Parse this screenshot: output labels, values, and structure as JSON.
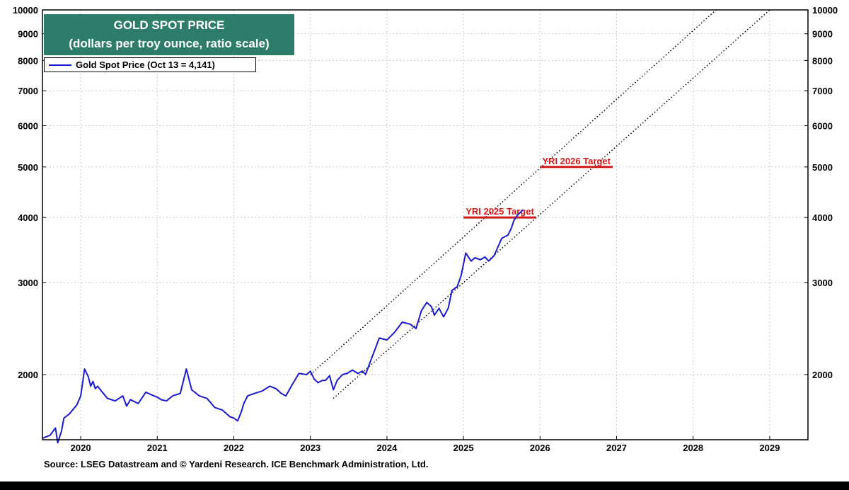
{
  "title": {
    "line1": "GOLD SPOT PRICE",
    "line2": "(dollars per troy ounce, ratio scale)"
  },
  "legend": {
    "label": "Gold Spot Price (Oct 13 = 4,141)"
  },
  "source": "Source: LSEG Datastream and © Yardeni Research. ICE Benchmark Administration, Ltd.",
  "colors": {
    "title_bg": "#2e7d6b",
    "series": "#1a1acc",
    "target": "#d11a1a",
    "grid": "#c8c8c8"
  },
  "chart_data": {
    "type": "line",
    "yscale": "log",
    "ylim": [
      1500,
      10000
    ],
    "xlim": [
      2019.5,
      2029.5
    ],
    "yticks": [
      2000,
      3000,
      4000,
      5000,
      6000,
      7000,
      8000,
      9000,
      10000
    ],
    "ytick_labels": [
      "2000",
      "3000",
      "4000",
      "5000",
      "6000",
      "7000",
      "8000",
      "9000",
      "10000"
    ],
    "xticks": [
      2020,
      2021,
      2022,
      2023,
      2024,
      2025,
      2026,
      2027,
      2028,
      2029
    ],
    "xtick_labels": [
      "2020",
      "2021",
      "2022",
      "2023",
      "2024",
      "2025",
      "2026",
      "2027",
      "2028",
      "2029"
    ],
    "grid": true,
    "legend_position": "top-left",
    "series": [
      {
        "name": "Gold Spot Price (Oct 13 = 4,141)",
        "x": [
          2019.5,
          2019.6,
          2019.67,
          2019.7,
          2019.75,
          2019.78,
          2019.85,
          2019.95,
          2020.0,
          2020.05,
          2020.1,
          2020.13,
          2020.16,
          2020.19,
          2020.22,
          2020.27,
          2020.35,
          2020.45,
          2020.55,
          2020.6,
          2020.65,
          2020.75,
          2020.85,
          2020.92,
          2021.0,
          2021.05,
          2021.12,
          2021.2,
          2021.3,
          2021.38,
          2021.45,
          2021.55,
          2021.65,
          2021.75,
          2021.85,
          2021.95,
          2022.0,
          2022.05,
          2022.1,
          2022.13,
          2022.18,
          2022.27,
          2022.37,
          2022.47,
          2022.55,
          2022.62,
          2022.68,
          2022.75,
          2022.85,
          2022.95,
          2023.0,
          2023.05,
          2023.1,
          2023.16,
          2023.2,
          2023.25,
          2023.3,
          2023.35,
          2023.42,
          2023.48,
          2023.55,
          2023.62,
          2023.68,
          2023.72,
          2023.8,
          2023.9,
          2024.0,
          2024.1,
          2024.2,
          2024.3,
          2024.38,
          2024.45,
          2024.52,
          2024.58,
          2024.62,
          2024.68,
          2024.74,
          2024.8,
          2024.85,
          2024.92,
          2024.97,
          2025.03,
          2025.1,
          2025.15,
          2025.22,
          2025.28,
          2025.33,
          2025.4,
          2025.5,
          2025.58,
          2025.62,
          2025.66,
          2025.71,
          2025.75,
          2025.78
        ],
        "y": [
          1510,
          1530,
          1580,
          1480,
          1560,
          1650,
          1680,
          1750,
          1820,
          2050,
          1980,
          1900,
          1940,
          1880,
          1900,
          1860,
          1800,
          1780,
          1820,
          1740,
          1790,
          1760,
          1850,
          1830,
          1810,
          1790,
          1780,
          1820,
          1840,
          2050,
          1870,
          1820,
          1800,
          1730,
          1710,
          1660,
          1650,
          1630,
          1700,
          1760,
          1820,
          1840,
          1860,
          1900,
          1880,
          1840,
          1820,
          1900,
          2010,
          2000,
          2030,
          1960,
          1930,
          1950,
          1950,
          1990,
          1870,
          1950,
          2000,
          2010,
          2040,
          2010,
          2030,
          2000,
          2150,
          2350,
          2330,
          2410,
          2520,
          2500,
          2450,
          2650,
          2750,
          2700,
          2600,
          2680,
          2580,
          2680,
          2900,
          2950,
          3100,
          3420,
          3300,
          3350,
          3320,
          3360,
          3300,
          3380,
          3650,
          3700,
          3800,
          3950,
          4050,
          4100,
          4141
        ]
      }
    ],
    "annotations": [
      {
        "label": "YRI 2025 Target",
        "value": 4000,
        "x_start": 2025.0,
        "x_end": 2025.95
      },
      {
        "label": "YRI 2026 Target",
        "value": 5000,
        "x_start": 2026.0,
        "x_end": 2026.95
      }
    ],
    "trend_channel": [
      {
        "x": [
          2023.0,
          2028.3
        ],
        "y": [
          2000,
          10000
        ]
      },
      {
        "x": [
          2023.3,
          2029.0
        ],
        "y": [
          1800,
          10000
        ]
      }
    ]
  }
}
